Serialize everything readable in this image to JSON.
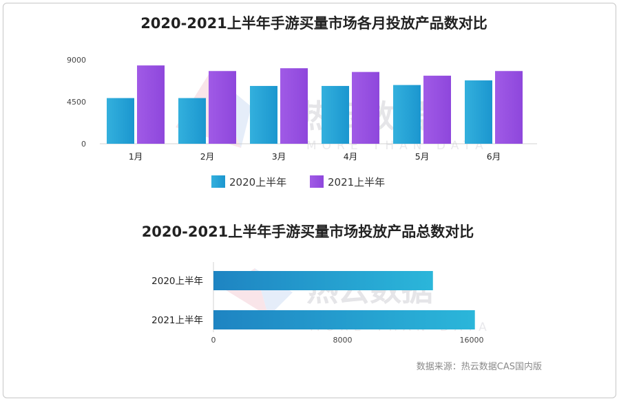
{
  "watermark": {
    "brand": "热云数据",
    "tagline": "MORE THAN DATA"
  },
  "source": "数据来源：热云数据CAS国内版",
  "colors": {
    "y2020": "#1fa3d6",
    "y2021": "#9b52e4"
  },
  "chart_data": [
    {
      "type": "bar",
      "title": "2020-2021上半年手游买量市场各月投放产品数对比",
      "categories": [
        "1月",
        "2月",
        "3月",
        "4月",
        "5月",
        "6月"
      ],
      "series": [
        {
          "name": "2020上半年",
          "values": [
            4900,
            4900,
            6200,
            6200,
            6300,
            6800
          ]
        },
        {
          "name": "2021上半年",
          "values": [
            8400,
            7800,
            8100,
            7700,
            7300,
            7800
          ]
        }
      ],
      "y_ticks": [
        "0",
        "4500",
        "9000"
      ],
      "ylim": [
        0,
        9000
      ],
      "legend": "bottom"
    },
    {
      "type": "bar",
      "orientation": "horizontal",
      "title": "2020-2021上半年手游买量市场投放产品总数对比",
      "categories": [
        "2020上半年",
        "2021上半年"
      ],
      "values": [
        13600,
        16200
      ],
      "x_ticks": [
        "0",
        "8000",
        "16000"
      ],
      "xlim": [
        0,
        16000
      ]
    }
  ]
}
